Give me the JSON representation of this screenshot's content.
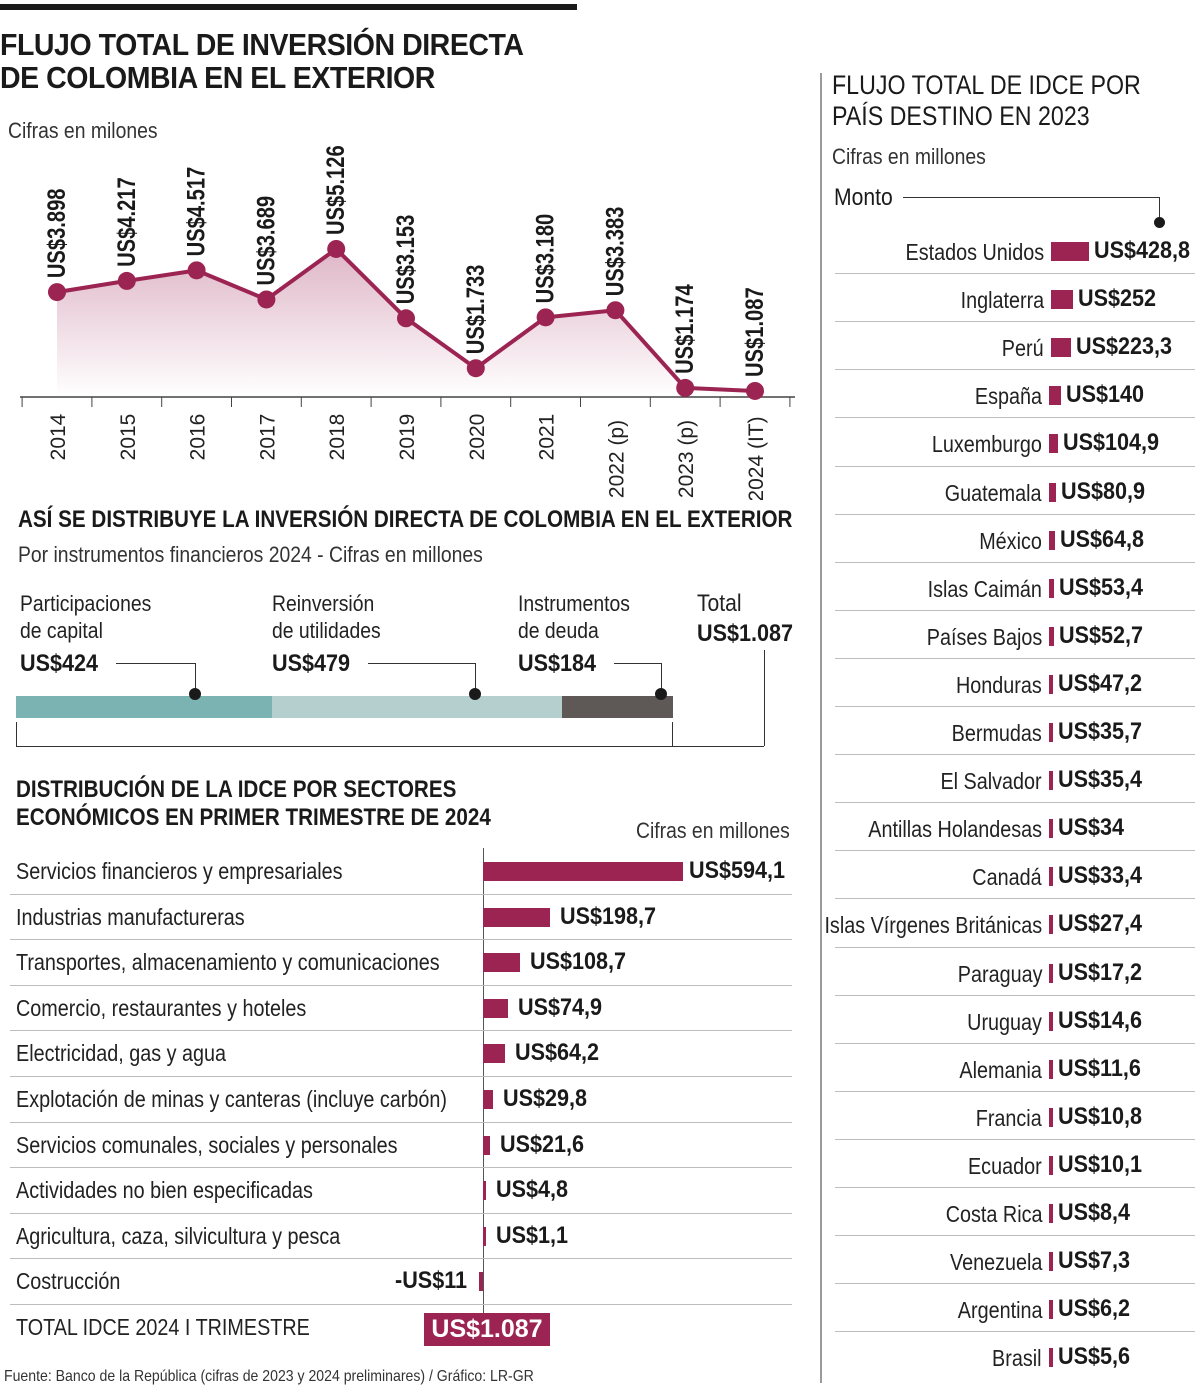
{
  "colors": {
    "accent": "#9c2452",
    "teal": "#7ab3b2",
    "teal_light": "#b5cfcf",
    "dark_gray": "#5e5956",
    "area_fill": "#f3dde6"
  },
  "header": {
    "title_line1": "FLUJO TOTAL DE INVERSIÓN DIRECTA",
    "title_line2": "DE COLOMBIA EN EL EXTERIOR",
    "subtitle": "Cifras en milones"
  },
  "instruments": {
    "title": "ASÍ SE DISTRIBUYE LA INVERSIÓN DIRECTA DE COLOMBIA EN EL EXTERIOR",
    "subtitle": "Por instrumentos financieros 2024 - Cifras en millones",
    "items": [
      {
        "label_line1": "Participaciones",
        "label_line2": "de capital",
        "value_label": "US$424",
        "value": 424
      },
      {
        "label_line1": "Reinversión",
        "label_line2": "de utilidades",
        "value_label": "US$479",
        "value": 479
      },
      {
        "label_line1": "Instrumentos",
        "label_line2": "de deuda",
        "value_label": "US$184",
        "value": 184
      }
    ],
    "total_label": "Total",
    "total_value": "US$1.087"
  },
  "sectors": {
    "title_line1": "DISTRIBUCIÓN DE LA IDCE POR SECTORES",
    "title_line2": "ECONÓMICOS EN PRIMER TRIMESTRE DE 2024",
    "subtitle": "Cifras en millones",
    "total_label": "TOTAL IDCE 2024 I TRIMESTRE",
    "total_value": "US$1.087"
  },
  "countries": {
    "title_line1": "FLUJO TOTAL DE IDCE POR",
    "title_line2": "PAÍS DESTINO EN 2023",
    "subtitle": "Cifras en millones",
    "monto_label": "Monto"
  },
  "source": "Fuente: Banco de la República (cifras de 2023 y 2024 preliminares) / Gráfico: LR-GR",
  "chart_data": [
    {
      "type": "area",
      "title": "FLUJO TOTAL DE INVERSIÓN DIRECTA DE COLOMBIA EN EL EXTERIOR",
      "x": [
        "2014",
        "2015",
        "2016",
        "2017",
        "2018",
        "2019",
        "2020",
        "2021",
        "2022 (p)",
        "2023 (p)",
        "2024 (IT)"
      ],
      "values": [
        3898,
        4217,
        4517,
        3689,
        5126,
        3153,
        1733,
        3180,
        3383,
        1174,
        1087
      ],
      "value_labels": [
        "US$3.898",
        "US$4.217",
        "US$4.517",
        "US$3.689",
        "US$5.126",
        "US$3.153",
        "US$1.733",
        "US$3.180",
        "US$3.383",
        "US$1.174",
        "US$1.087"
      ],
      "ylim": [
        1000,
        5500
      ]
    },
    {
      "type": "bar",
      "title": "ASÍ SE DISTRIBUYE LA INVERSIÓN DIRECTA DE COLOMBIA EN EL EXTERIOR",
      "categories": [
        "Participaciones de capital",
        "Reinversión de utilidades",
        "Instrumentos de deuda"
      ],
      "values": [
        424,
        479,
        184
      ]
    },
    {
      "type": "bar",
      "title": "DISTRIBUCIÓN DE LA IDCE POR SECTORES ECONÓMICOS EN PRIMER TRIMESTRE DE 2024",
      "categories": [
        "Servicios financieros y empresariales",
        "Industrias manufactureras",
        "Transportes, almacenamiento y comunicaciones",
        "Comercio, restaurantes y hoteles",
        "Electricidad, gas y agua",
        "Explotación de minas y canteras (incluye carbón)",
        "Servicios comunales, sociales y personales",
        "Actividades no bien especificadas",
        "Agricultura, caza, silvicultura y pesca",
        "Costrucción"
      ],
      "values": [
        594.1,
        198.7,
        108.7,
        74.9,
        64.2,
        29.8,
        21.6,
        4.8,
        1.1,
        -11
      ],
      "value_labels": [
        "US$594,1",
        "US$198,7",
        "US$108,7",
        "US$74,9",
        "US$64,2",
        "US$29,8",
        "US$21,6",
        "US$4,8",
        "US$1,1",
        "-US$11"
      ]
    },
    {
      "type": "bar",
      "title": "FLUJO TOTAL DE IDCE POR PAÍS DESTINO EN 2023",
      "categories": [
        "Estados Unidos",
        "Inglaterra",
        "Perú",
        "España",
        "Luxemburgo",
        "Guatemala",
        "México",
        "Islas Caimán",
        "Países Bajos",
        "Honduras",
        "Bermudas",
        "El Salvador",
        "Antillas Holandesas",
        "Canadá",
        "Islas Vírgenes Británicas",
        "Paraguay",
        "Uruguay",
        "Alemania",
        "Francia",
        "Ecuador",
        "Costa Rica",
        "Venezuela",
        "Argentina",
        "Brasil"
      ],
      "values": [
        428.8,
        252,
        223.3,
        140,
        104.9,
        80.9,
        64.8,
        53.4,
        52.7,
        47.2,
        35.7,
        35.4,
        34,
        33.4,
        27.4,
        17.2,
        14.6,
        11.6,
        10.8,
        10.1,
        8.4,
        7.3,
        6.2,
        5.6
      ],
      "value_labels": [
        "US$428,8",
        "US$252",
        "US$223,3",
        "US$140",
        "US$104,9",
        "US$80,9",
        "US$64,8",
        "US$53,4",
        "US$52,7",
        "US$47,2",
        "US$35,7",
        "US$35,4",
        "US$34",
        "US$33,4",
        "US$27,4",
        "US$17,2",
        "US$14,6",
        "US$11,6",
        "US$10,8",
        "US$10,1",
        "US$8,4",
        "US$7,3",
        "US$6,2",
        "US$5,6"
      ]
    }
  ]
}
